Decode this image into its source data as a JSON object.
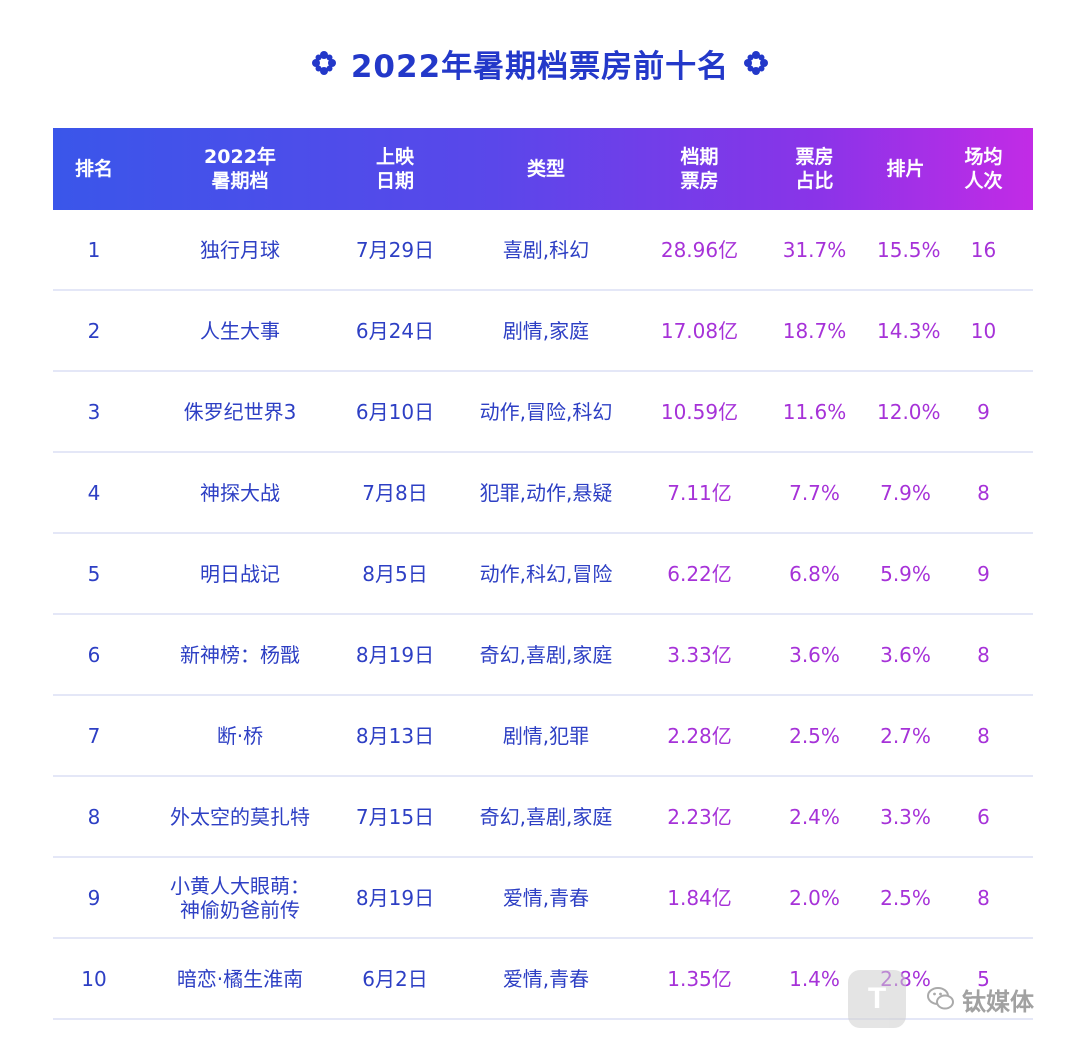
{
  "title": "2022年暑期档票房前十名",
  "header": {
    "rank": "排名",
    "name": "2022年\n暑期档",
    "date": "上映\n日期",
    "genre": "类型",
    "box": "档期\n票房",
    "share": "票房\n占比",
    "sched": "排片",
    "avg": "场均\n人次"
  },
  "rows": [
    {
      "rank": "1",
      "name": "独行月球",
      "date": "7月29日",
      "genre": "喜剧,科幻",
      "box": "28.96亿",
      "share": "31.7%",
      "sched": "15.5%",
      "avg": "16"
    },
    {
      "rank": "2",
      "name": "人生大事",
      "date": "6月24日",
      "genre": "剧情,家庭",
      "box": "17.08亿",
      "share": "18.7%",
      "sched": "14.3%",
      "avg": "10"
    },
    {
      "rank": "3",
      "name": "侏罗纪世界3",
      "date": "6月10日",
      "genre": "动作,冒险,科幻",
      "box": "10.59亿",
      "share": "11.6%",
      "sched": "12.0%",
      "avg": "9"
    },
    {
      "rank": "4",
      "name": "神探大战",
      "date": "7月8日",
      "genre": "犯罪,动作,悬疑",
      "box": "7.11亿",
      "share": "7.7%",
      "sched": "7.9%",
      "avg": "8"
    },
    {
      "rank": "5",
      "name": "明日战记",
      "date": "8月5日",
      "genre": "动作,科幻,冒险",
      "box": "6.22亿",
      "share": "6.8%",
      "sched": "5.9%",
      "avg": "9"
    },
    {
      "rank": "6",
      "name": "新神榜：杨戬",
      "date": "8月19日",
      "genre": "奇幻,喜剧,家庭",
      "box": "3.33亿",
      "share": "3.6%",
      "sched": "3.6%",
      "avg": "8"
    },
    {
      "rank": "7",
      "name": "断·桥",
      "date": "8月13日",
      "genre": "剧情,犯罪",
      "box": "2.28亿",
      "share": "2.5%",
      "sched": "2.7%",
      "avg": "8"
    },
    {
      "rank": "8",
      "name": "外太空的莫扎特",
      "date": "7月15日",
      "genre": "奇幻,喜剧,家庭",
      "box": "2.23亿",
      "share": "2.4%",
      "sched": "3.3%",
      "avg": "6"
    },
    {
      "rank": "9",
      "name": "小黄人大眼萌：\n神偷奶爸前传",
      "date": "8月19日",
      "genre": "爱情,青春",
      "box": "1.84亿",
      "share": "2.0%",
      "sched": "2.5%",
      "avg": "8"
    },
    {
      "rank": "10",
      "name": "暗恋·橘生淮南",
      "date": "6月2日",
      "genre": "爱情,青春",
      "box": "1.35亿",
      "share": "1.4%",
      "sched": "2.8%",
      "avg": "5"
    }
  ],
  "watermark": {
    "logo": "T",
    "text": "钛媒体"
  },
  "colors": {
    "title": "#2338c9",
    "header_gradient_start": "#3a56ea",
    "header_gradient_end": "#c22be6",
    "text_blue": "#2d3fc4",
    "text_purple": "#a632d8"
  },
  "icons": {
    "title_left": "snowflake-flower-icon",
    "title_right": "snowflake-flower-icon",
    "watermark_chat": "wechat-icon"
  }
}
